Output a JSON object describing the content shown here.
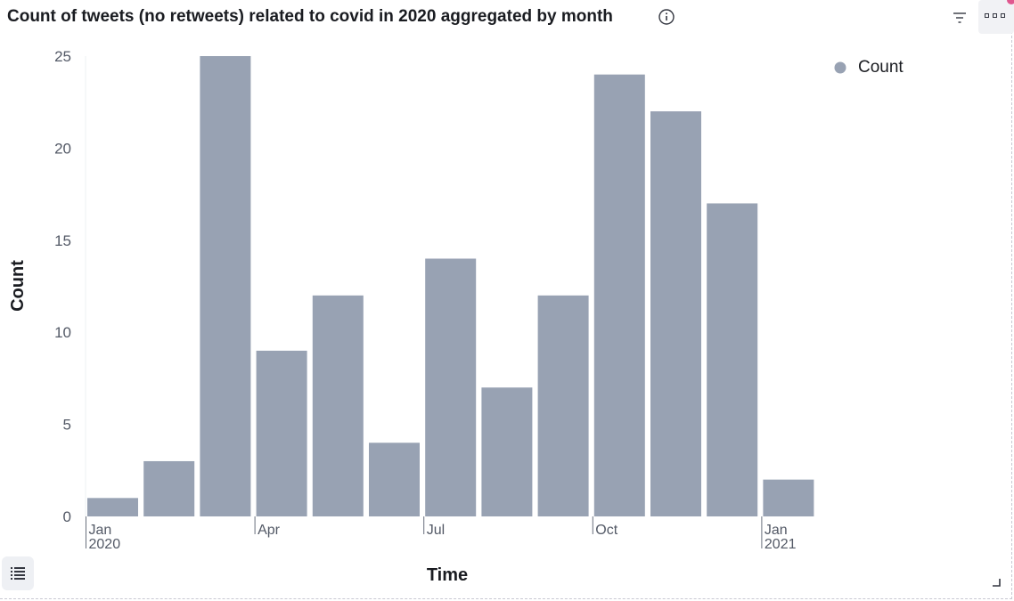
{
  "panel": {
    "title": "Count of tweets (no retweets) related to covid in 2020 aggregated by month"
  },
  "icons": {
    "info": "info-icon",
    "filter": "filter-icon",
    "menu": "options-menu-icon",
    "legend_toggle": "legend-list-icon",
    "resize": "resize-handle-icon"
  },
  "chart_data": {
    "type": "bar",
    "xlabel": "Time",
    "ylabel": "Count",
    "ylim": [
      0,
      25
    ],
    "yticks": [
      0,
      5,
      10,
      15,
      20,
      25
    ],
    "bar_color": "#98a2b3",
    "legend": {
      "entries": [
        "Count"
      ],
      "position": "top-right"
    },
    "x_tick_labels": [
      {
        "month_index": 0,
        "line1": "Jan",
        "line2": "2020"
      },
      {
        "month_index": 3,
        "line1": "Apr",
        "line2": ""
      },
      {
        "month_index": 6,
        "line1": "Jul",
        "line2": ""
      },
      {
        "month_index": 9,
        "line1": "Oct",
        "line2": ""
      },
      {
        "month_index": 12,
        "line1": "Jan",
        "line2": "2021"
      }
    ],
    "categories": [
      "2020-01",
      "2020-02",
      "2020-03",
      "2020-04",
      "2020-05",
      "2020-06",
      "2020-07",
      "2020-08",
      "2020-09",
      "2020-10",
      "2020-11",
      "2020-12",
      "2021-01"
    ],
    "series": [
      {
        "name": "Count",
        "values": [
          1,
          3,
          25,
          9,
          12,
          4,
          14,
          7,
          12,
          24,
          22,
          17,
          2
        ]
      }
    ]
  }
}
